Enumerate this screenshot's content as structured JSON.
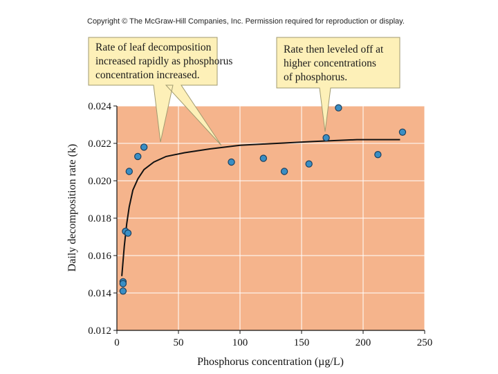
{
  "copyright": "Copyright © The McGraw-Hill Companies, Inc. Permission required for reproduction or display.",
  "callouts": [
    {
      "lines": [
        "Rate of leaf decomposition",
        "increased rapidly as phosphorus",
        "concentration increased."
      ]
    },
    {
      "lines": [
        "Rate then leveled off at",
        "higher concentrations",
        "of phosphorus."
      ]
    }
  ],
  "colors": {
    "plot_background": "#f5b48c",
    "grid": "#ffffff",
    "point_fill": "#3a8ec4",
    "point_stroke": "#1a3f5e",
    "curve": "#111111",
    "callout_fill": "#fdf0b8",
    "callout_stroke": "#a09a70"
  },
  "chart_data": {
    "type": "scatter",
    "title": "",
    "xlabel": "Phosphorus concentration (µg/L)",
    "ylabel": "Daily decomposition rate (k)",
    "xlim": [
      0,
      250
    ],
    "ylim": [
      0.012,
      0.024
    ],
    "xticks": [
      0,
      50,
      100,
      150,
      200,
      250
    ],
    "yticks": [
      0.012,
      0.014,
      0.016,
      0.018,
      0.02,
      0.022,
      0.024
    ],
    "xtick_labels": [
      "0",
      "50",
      "100",
      "150",
      "200",
      "250"
    ],
    "ytick_labels": [
      "0.012",
      "0.014",
      "0.016",
      "0.018",
      "0.020",
      "0.022",
      "0.024"
    ],
    "grid": true,
    "points": [
      {
        "x": 5,
        "y": 0.0146
      },
      {
        "x": 5,
        "y": 0.0145
      },
      {
        "x": 5,
        "y": 0.0141
      },
      {
        "x": 7,
        "y": 0.0173
      },
      {
        "x": 9,
        "y": 0.0172
      },
      {
        "x": 10,
        "y": 0.0205
      },
      {
        "x": 17,
        "y": 0.0213
      },
      {
        "x": 22,
        "y": 0.0218
      },
      {
        "x": 93,
        "y": 0.021
      },
      {
        "x": 119,
        "y": 0.0212
      },
      {
        "x": 136,
        "y": 0.0205
      },
      {
        "x": 156,
        "y": 0.0209
      },
      {
        "x": 170,
        "y": 0.0223
      },
      {
        "x": 180,
        "y": 0.0239
      },
      {
        "x": 212,
        "y": 0.0214
      },
      {
        "x": 232,
        "y": 0.0226
      }
    ],
    "fit_curve": [
      {
        "x": 4,
        "y": 0.0149
      },
      {
        "x": 5,
        "y": 0.0157
      },
      {
        "x": 6,
        "y": 0.0165
      },
      {
        "x": 8,
        "y": 0.0177
      },
      {
        "x": 10,
        "y": 0.0186
      },
      {
        "x": 13,
        "y": 0.0195
      },
      {
        "x": 17,
        "y": 0.0201
      },
      {
        "x": 22,
        "y": 0.0206
      },
      {
        "x": 30,
        "y": 0.021
      },
      {
        "x": 40,
        "y": 0.0213
      },
      {
        "x": 55,
        "y": 0.0215
      },
      {
        "x": 75,
        "y": 0.0217
      },
      {
        "x": 100,
        "y": 0.0219
      },
      {
        "x": 130,
        "y": 0.022
      },
      {
        "x": 160,
        "y": 0.0221
      },
      {
        "x": 195,
        "y": 0.0222
      },
      {
        "x": 230,
        "y": 0.0222
      }
    ]
  }
}
